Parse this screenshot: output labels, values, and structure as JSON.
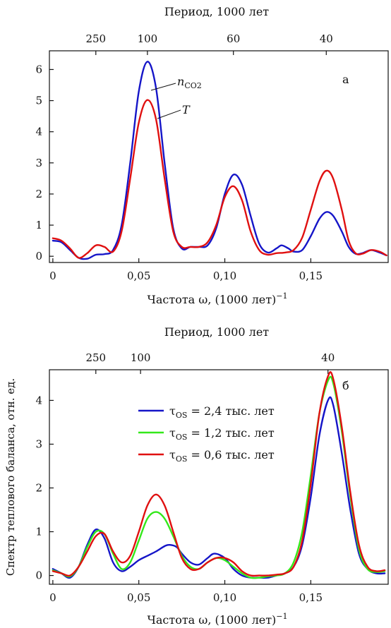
{
  "chart_data": [
    {
      "type": "line",
      "panel_label": "а",
      "xlabel": "Частота ω, (1000 лет)",
      "xlabel_sup": "−1",
      "top_axis_label": "Период, 1000 лет",
      "top_ticks": [
        {
          "label": "250",
          "x": 0.025
        },
        {
          "label": "100",
          "x": 0.055
        },
        {
          "label": "60",
          "x": 0.105
        },
        {
          "label": "40",
          "x": 0.159
        }
      ],
      "x_ticks": [
        {
          "label": "0",
          "x": 0
        },
        {
          "label": "0,05",
          "x": 0.05
        },
        {
          "label": "0,10",
          "x": 0.1
        },
        {
          "label": "0,15",
          "x": 0.15
        }
      ],
      "y_ticks": [
        0,
        1,
        2,
        3,
        4,
        5,
        6
      ],
      "xlim": [
        -0.002,
        0.195
      ],
      "ylim": [
        -0.2,
        6.6
      ],
      "annotations": [
        {
          "text": "n",
          "sub": "CO2"
        },
        {
          "text": "T"
        }
      ],
      "series": [
        {
          "color": "#1515c8",
          "points": [
            [
              0,
              0.5
            ],
            [
              0.005,
              0.45
            ],
            [
              0.01,
              0.2
            ],
            [
              0.015,
              -0.05
            ],
            [
              0.02,
              -0.08
            ],
            [
              0.025,
              0.05
            ],
            [
              0.03,
              0.07
            ],
            [
              0.035,
              0.2
            ],
            [
              0.04,
              1.0
            ],
            [
              0.045,
              3.0
            ],
            [
              0.05,
              5.3
            ],
            [
              0.055,
              6.25
            ],
            [
              0.06,
              5.4
            ],
            [
              0.065,
              3.0
            ],
            [
              0.07,
              0.9
            ],
            [
              0.075,
              0.25
            ],
            [
              0.08,
              0.3
            ],
            [
              0.085,
              0.3
            ],
            [
              0.09,
              0.35
            ],
            [
              0.095,
              0.9
            ],
            [
              0.1,
              2.0
            ],
            [
              0.105,
              2.62
            ],
            [
              0.11,
              2.3
            ],
            [
              0.115,
              1.3
            ],
            [
              0.12,
              0.4
            ],
            [
              0.125,
              0.12
            ],
            [
              0.13,
              0.25
            ],
            [
              0.133,
              0.35
            ],
            [
              0.137,
              0.25
            ],
            [
              0.14,
              0.15
            ],
            [
              0.145,
              0.2
            ],
            [
              0.15,
              0.65
            ],
            [
              0.155,
              1.2
            ],
            [
              0.159,
              1.42
            ],
            [
              0.163,
              1.3
            ],
            [
              0.168,
              0.8
            ],
            [
              0.172,
              0.3
            ],
            [
              0.176,
              0.08
            ],
            [
              0.18,
              0.1
            ],
            [
              0.185,
              0.2
            ],
            [
              0.19,
              0.12
            ],
            [
              0.194,
              0.03
            ]
          ]
        },
        {
          "color": "#e01010",
          "points": [
            [
              0,
              0.58
            ],
            [
              0.005,
              0.5
            ],
            [
              0.01,
              0.25
            ],
            [
              0.015,
              -0.05
            ],
            [
              0.02,
              0.1
            ],
            [
              0.025,
              0.35
            ],
            [
              0.03,
              0.3
            ],
            [
              0.035,
              0.15
            ],
            [
              0.04,
              0.8
            ],
            [
              0.045,
              2.5
            ],
            [
              0.05,
              4.3
            ],
            [
              0.055,
              5.02
            ],
            [
              0.06,
              4.4
            ],
            [
              0.065,
              2.5
            ],
            [
              0.07,
              0.8
            ],
            [
              0.075,
              0.3
            ],
            [
              0.08,
              0.3
            ],
            [
              0.085,
              0.3
            ],
            [
              0.09,
              0.45
            ],
            [
              0.095,
              1.0
            ],
            [
              0.1,
              1.9
            ],
            [
              0.105,
              2.25
            ],
            [
              0.11,
              1.8
            ],
            [
              0.115,
              0.8
            ],
            [
              0.12,
              0.2
            ],
            [
              0.125,
              0.05
            ],
            [
              0.13,
              0.1
            ],
            [
              0.135,
              0.12
            ],
            [
              0.14,
              0.2
            ],
            [
              0.145,
              0.6
            ],
            [
              0.15,
              1.5
            ],
            [
              0.155,
              2.4
            ],
            [
              0.159,
              2.75
            ],
            [
              0.163,
              2.5
            ],
            [
              0.168,
              1.5
            ],
            [
              0.172,
              0.5
            ],
            [
              0.176,
              0.1
            ],
            [
              0.18,
              0.08
            ],
            [
              0.185,
              0.2
            ],
            [
              0.19,
              0.15
            ],
            [
              0.194,
              0.03
            ]
          ]
        }
      ]
    },
    {
      "type": "line",
      "panel_label": "б",
      "xlabel": "Частота ω, (1000 лет)",
      "xlabel_sup": "−1",
      "ylabel": "Спектр теплового баланса, отн. ед.",
      "top_axis_label": "Период, 1000 лет",
      "top_ticks": [
        {
          "label": "250",
          "x": 0.025
        },
        {
          "label": "100",
          "x": 0.051
        },
        {
          "label": "40",
          "x": 0.16
        }
      ],
      "x_ticks": [
        {
          "label": "0",
          "x": 0
        },
        {
          "label": "0,05",
          "x": 0.05
        },
        {
          "label": "0,10",
          "x": 0.1
        },
        {
          "label": "0,15",
          "x": 0.15
        }
      ],
      "y_ticks": [
        0,
        1,
        2,
        3,
        4
      ],
      "xlim": [
        -0.002,
        0.195
      ],
      "ylim": [
        -0.2,
        4.7
      ],
      "legend_position": "center",
      "series": [
        {
          "name": "τOS = 2,4 тыс. лет",
          "name_parts": [
            "τ",
            "OS",
            " = 2,4 тыс. лет"
          ],
          "color": "#1515c8",
          "points": [
            [
              0,
              0.15
            ],
            [
              0.005,
              0.05
            ],
            [
              0.01,
              -0.05
            ],
            [
              0.015,
              0.2
            ],
            [
              0.02,
              0.7
            ],
            [
              0.025,
              1.05
            ],
            [
              0.03,
              0.85
            ],
            [
              0.035,
              0.3
            ],
            [
              0.04,
              0.1
            ],
            [
              0.045,
              0.2
            ],
            [
              0.05,
              0.35
            ],
            [
              0.055,
              0.45
            ],
            [
              0.06,
              0.55
            ],
            [
              0.065,
              0.67
            ],
            [
              0.068,
              0.7
            ],
            [
              0.072,
              0.65
            ],
            [
              0.075,
              0.5
            ],
            [
              0.08,
              0.3
            ],
            [
              0.085,
              0.25
            ],
            [
              0.09,
              0.4
            ],
            [
              0.094,
              0.5
            ],
            [
              0.1,
              0.4
            ],
            [
              0.105,
              0.15
            ],
            [
              0.11,
              0.0
            ],
            [
              0.115,
              -0.05
            ],
            [
              0.12,
              -0.05
            ],
            [
              0.125,
              -0.05
            ],
            [
              0.13,
              0.0
            ],
            [
              0.135,
              0.05
            ],
            [
              0.14,
              0.2
            ],
            [
              0.145,
              0.7
            ],
            [
              0.15,
              1.8
            ],
            [
              0.155,
              3.2
            ],
            [
              0.16,
              4.0
            ],
            [
              0.163,
              3.9
            ],
            [
              0.168,
              2.8
            ],
            [
              0.173,
              1.5
            ],
            [
              0.178,
              0.5
            ],
            [
              0.183,
              0.15
            ],
            [
              0.188,
              0.05
            ],
            [
              0.193,
              0.05
            ]
          ]
        },
        {
          "name": "τOS = 1,2 тыс. лет",
          "name_parts": [
            "τ",
            "OS",
            " = 1,2 тыс. лет"
          ],
          "color": "#33e81a",
          "points": [
            [
              0,
              0.12
            ],
            [
              0.005,
              0.05
            ],
            [
              0.01,
              -0.02
            ],
            [
              0.015,
              0.2
            ],
            [
              0.02,
              0.65
            ],
            [
              0.025,
              1.0
            ],
            [
              0.03,
              0.95
            ],
            [
              0.035,
              0.5
            ],
            [
              0.04,
              0.15
            ],
            [
              0.045,
              0.3
            ],
            [
              0.05,
              0.8
            ],
            [
              0.055,
              1.3
            ],
            [
              0.06,
              1.45
            ],
            [
              0.065,
              1.3
            ],
            [
              0.07,
              0.9
            ],
            [
              0.075,
              0.45
            ],
            [
              0.08,
              0.2
            ],
            [
              0.085,
              0.15
            ],
            [
              0.09,
              0.3
            ],
            [
              0.095,
              0.4
            ],
            [
              0.1,
              0.35
            ],
            [
              0.105,
              0.2
            ],
            [
              0.11,
              0.05
            ],
            [
              0.115,
              -0.05
            ],
            [
              0.12,
              -0.05
            ],
            [
              0.125,
              -0.02
            ],
            [
              0.13,
              0.0
            ],
            [
              0.135,
              0.05
            ],
            [
              0.14,
              0.3
            ],
            [
              0.145,
              1.0
            ],
            [
              0.15,
              2.3
            ],
            [
              0.155,
              3.7
            ],
            [
              0.16,
              4.45
            ],
            [
              0.163,
              4.4
            ],
            [
              0.168,
              3.3
            ],
            [
              0.173,
              1.8
            ],
            [
              0.178,
              0.6
            ],
            [
              0.183,
              0.15
            ],
            [
              0.188,
              0.08
            ],
            [
              0.193,
              0.1
            ]
          ]
        },
        {
          "name": "τOS = 0,6 тыс. лет",
          "name_parts": [
            "τ",
            "OS",
            " = 0,6 тыс. лет"
          ],
          "color": "#e01010",
          "points": [
            [
              0,
              0.1
            ],
            [
              0.005,
              0.05
            ],
            [
              0.01,
              0.0
            ],
            [
              0.015,
              0.2
            ],
            [
              0.02,
              0.55
            ],
            [
              0.025,
              0.9
            ],
            [
              0.03,
              0.95
            ],
            [
              0.035,
              0.55
            ],
            [
              0.04,
              0.3
            ],
            [
              0.045,
              0.45
            ],
            [
              0.05,
              1.0
            ],
            [
              0.055,
              1.6
            ],
            [
              0.06,
              1.85
            ],
            [
              0.065,
              1.6
            ],
            [
              0.07,
              1.0
            ],
            [
              0.075,
              0.4
            ],
            [
              0.08,
              0.15
            ],
            [
              0.085,
              0.15
            ],
            [
              0.09,
              0.3
            ],
            [
              0.095,
              0.4
            ],
            [
              0.1,
              0.4
            ],
            [
              0.105,
              0.3
            ],
            [
              0.11,
              0.1
            ],
            [
              0.115,
              0.0
            ],
            [
              0.12,
              0.0
            ],
            [
              0.125,
              0.0
            ],
            [
              0.13,
              0.02
            ],
            [
              0.135,
              0.05
            ],
            [
              0.14,
              0.2
            ],
            [
              0.145,
              0.8
            ],
            [
              0.15,
              2.1
            ],
            [
              0.155,
              3.7
            ],
            [
              0.16,
              4.55
            ],
            [
              0.163,
              4.5
            ],
            [
              0.168,
              3.4
            ],
            [
              0.173,
              1.9
            ],
            [
              0.178,
              0.7
            ],
            [
              0.183,
              0.2
            ],
            [
              0.188,
              0.1
            ],
            [
              0.193,
              0.12
            ]
          ]
        }
      ]
    }
  ]
}
